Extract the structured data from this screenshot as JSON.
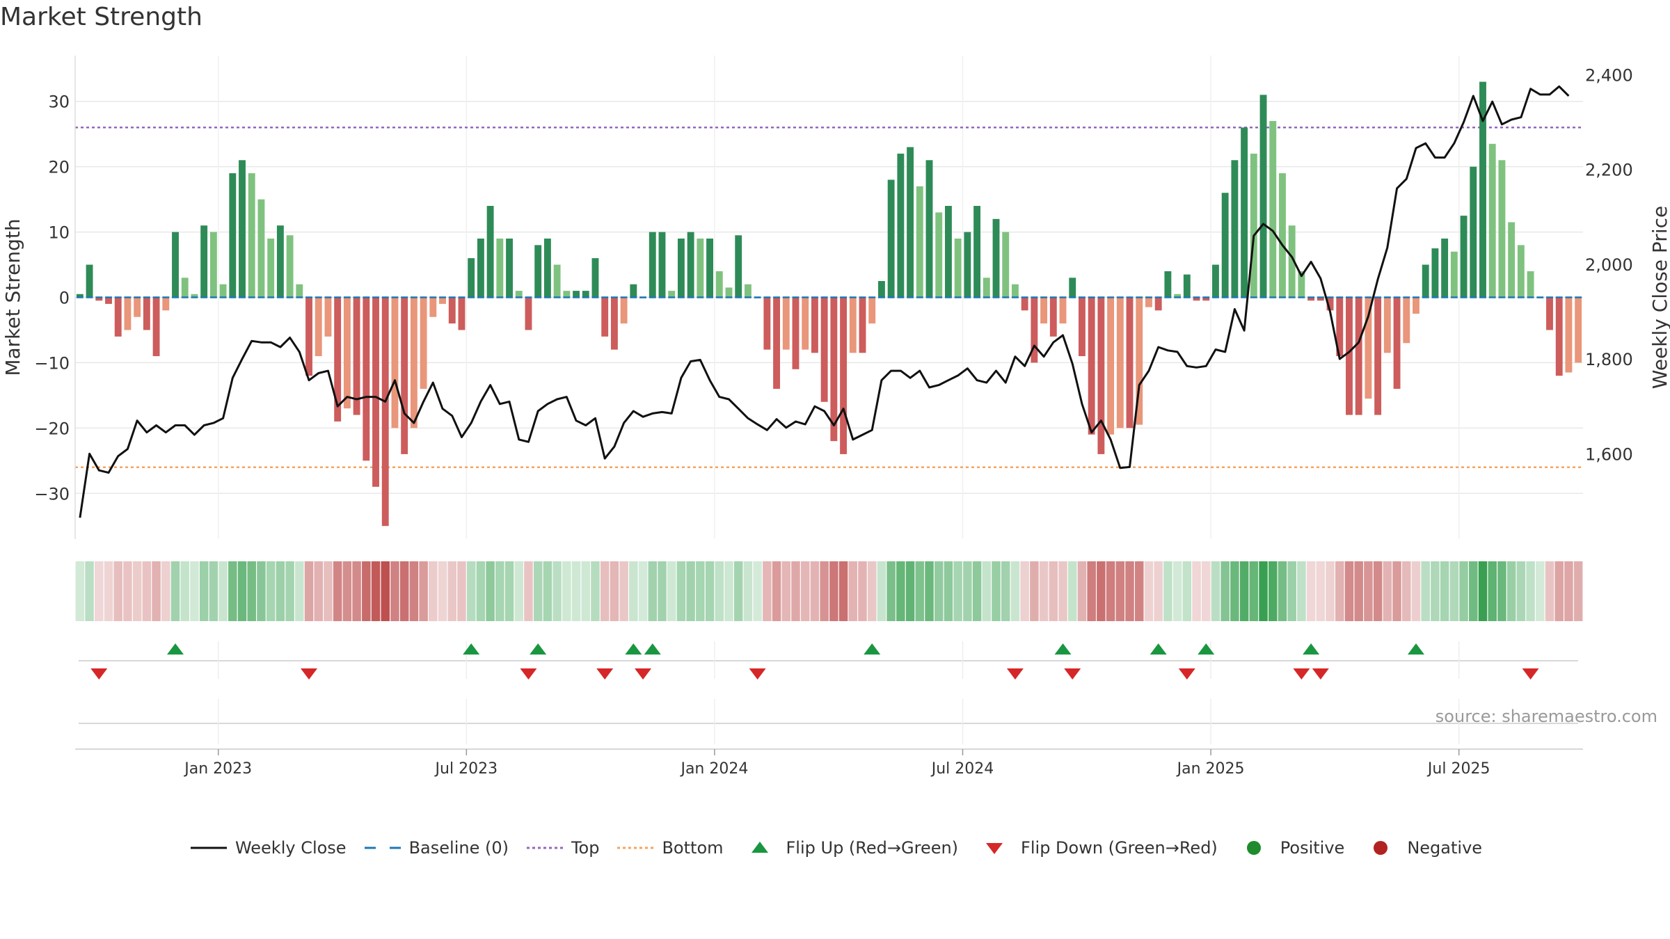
{
  "chart_data": {
    "type": "bar",
    "title": "Market Strength",
    "ylabel": "Market Strength",
    "y2label": "Weekly Close Price",
    "ylim": [
      -37,
      37
    ],
    "y2lim": [
      1420,
      2440
    ],
    "yticks": [
      30,
      20,
      10,
      0,
      -10,
      -20,
      -30
    ],
    "yticklabels": [
      "30",
      "20",
      "10",
      "0",
      "−10",
      "−20",
      "−30"
    ],
    "y2ticks": [
      2400,
      2200,
      2000,
      1800,
      1600
    ],
    "y2ticklabels": [
      "2,400",
      "2,200",
      "2,000",
      "1,800",
      "1,600"
    ],
    "top_line": 26,
    "bottom_line": -26,
    "xticklabels": [
      "Jan 2023",
      "Jul 2023",
      "Jan 2024",
      "Jul 2024",
      "Jan 2025",
      "Jul 2025"
    ],
    "xtick_index": [
      14.5,
      40.5,
      66.5,
      92.5,
      118.5,
      144.5
    ],
    "series": [
      {
        "name": "Market Strength",
        "values": [
          0.5,
          5,
          -0.5,
          -1,
          -6,
          -5,
          -3,
          -5,
          -9,
          -2,
          10,
          3,
          0.5,
          11,
          10,
          2,
          19,
          21,
          19,
          15,
          9,
          11,
          9.5,
          2,
          -12,
          -9,
          -6,
          -19,
          -17,
          -18,
          -25,
          -29,
          -35,
          -20,
          -24,
          -20,
          -14,
          -3,
          -1,
          -4,
          -5,
          6,
          9,
          14,
          9,
          9,
          1,
          -5,
          8,
          9,
          5,
          1,
          1,
          1,
          6,
          -6,
          -8,
          -4,
          2,
          0,
          10,
          10,
          1,
          9,
          10,
          9,
          9,
          4,
          1.5,
          9.5,
          2,
          0,
          -8,
          -14,
          -8,
          -11,
          -8,
          -8.5,
          -16,
          -22,
          -24,
          -8.5,
          -8.5,
          -4,
          2.5,
          18,
          22,
          23,
          17,
          21,
          13,
          14,
          9,
          10,
          14,
          3,
          12,
          10,
          2,
          -2,
          -10,
          -4,
          -6,
          -4,
          3,
          -9,
          -21,
          -24,
          -21,
          -20,
          -20,
          -19.5,
          -1.5,
          -2,
          4,
          0.5,
          3.5,
          -0.5,
          -0.5,
          5,
          16,
          21,
          26,
          22,
          31,
          27,
          19,
          11,
          4,
          -0.5,
          -0.5,
          -2,
          -9,
          -18,
          -18,
          -15.5,
          -18,
          -8.5,
          -14,
          -7,
          -2.5,
          5,
          7.5,
          9,
          7,
          12.5,
          20,
          33,
          23.5,
          21,
          11.5,
          8,
          4,
          0,
          -5,
          -12,
          -11.5,
          -10
        ]
      },
      {
        "name": "Weekly Close",
        "values": [
          1465,
          1600,
          1565,
          1560,
          1595,
          1610,
          1670,
          1645,
          1660,
          1645,
          1660,
          1660,
          1640,
          1660,
          1665,
          1675,
          1760,
          1800,
          1838,
          1835,
          1835,
          1825,
          1845,
          1815,
          1755,
          1770,
          1775,
          1700,
          1720,
          1715,
          1720,
          1720,
          1710,
          1755,
          1685,
          1665,
          1710,
          1750,
          1695,
          1680,
          1635,
          1665,
          1710,
          1745,
          1705,
          1710,
          1630,
          1625,
          1690,
          1705,
          1715,
          1720,
          1670,
          1660,
          1675,
          1590,
          1615,
          1665,
          1690,
          1678,
          1685,
          1688,
          1685,
          1760,
          1795,
          1798,
          1755,
          1720,
          1715,
          1695,
          1675,
          1662,
          1650,
          1673,
          1655,
          1668,
          1662,
          1700,
          1690,
          1660,
          1695,
          1630,
          1640,
          1650,
          1755,
          1775,
          1775,
          1760,
          1775,
          1740,
          1745,
          1755,
          1765,
          1780,
          1755,
          1750,
          1775,
          1750,
          1805,
          1785,
          1828,
          1805,
          1835,
          1850,
          1790,
          1705,
          1645,
          1670,
          1630,
          1570,
          1572,
          1745,
          1775,
          1825,
          1818,
          1815,
          1785,
          1782,
          1785,
          1820,
          1815,
          1905,
          1860,
          2060,
          2085,
          2070,
          2040,
          2015,
          1975,
          2005,
          1970,
          1900,
          1800,
          1815,
          1835,
          1890,
          1968,
          2035,
          2160,
          2180,
          2245,
          2255,
          2225,
          2225,
          2255,
          2300,
          2355,
          2302,
          2343,
          2295,
          2305,
          2310,
          2370,
          2358,
          2358,
          2375,
          2355
        ]
      }
    ],
    "flip_up_index": [
      10,
      41,
      48,
      58,
      60,
      83,
      103,
      113,
      118,
      129,
      140
    ],
    "flip_down_index": [
      2,
      24,
      47,
      55,
      59,
      71,
      98,
      104,
      116,
      128,
      130,
      152
    ],
    "legend": [
      {
        "label": "Weekly Close",
        "key": "close"
      },
      {
        "label": "Baseline (0)",
        "key": "baseline"
      },
      {
        "label": "Top",
        "key": "top"
      },
      {
        "label": "Bottom",
        "key": "bottom"
      },
      {
        "label": "Flip Up (Red→Green)",
        "key": "flipup"
      },
      {
        "label": "Flip Down (Green→Red)",
        "key": "flipdown"
      },
      {
        "label": "Positive",
        "key": "positive"
      },
      {
        "label": "Negative",
        "key": "negative"
      }
    ]
  },
  "colors": {
    "pos_strong": "#2e8b57",
    "pos_light": "#7fc27f",
    "neg_strong": "#cd5c5c",
    "neg_light": "#e9967a",
    "close_line": "#111111",
    "baseline": "#1f77b4",
    "top": "#9467bd",
    "bottom": "#f4a460",
    "flip_up": "#1a9641",
    "flip_down": "#d62728",
    "positive_dot": "#1f8b2c",
    "negative_dot": "#b22222",
    "grid": "#e8e8e8"
  },
  "source": "source: sharemaestro.com"
}
